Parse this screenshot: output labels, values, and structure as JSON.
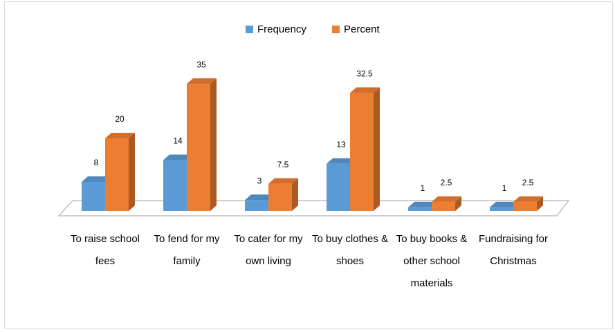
{
  "chart_data": {
    "type": "bar3d",
    "categories": [
      "To raise school fees",
      "To fend for my family",
      "To cater for my own living",
      "To buy clothes & shoes",
      "To buy books & other school materials",
      "Fundraising for Christmas"
    ],
    "series": [
      {
        "name": "Frequency",
        "color": "#5b9bd5",
        "values": [
          8,
          14,
          3,
          13,
          1,
          1
        ]
      },
      {
        "name": "Percent",
        "color": "#ed7d31",
        "values": [
          20,
          35,
          7.5,
          32.5,
          2.5,
          2.5
        ]
      }
    ],
    "legend": "top"
  }
}
